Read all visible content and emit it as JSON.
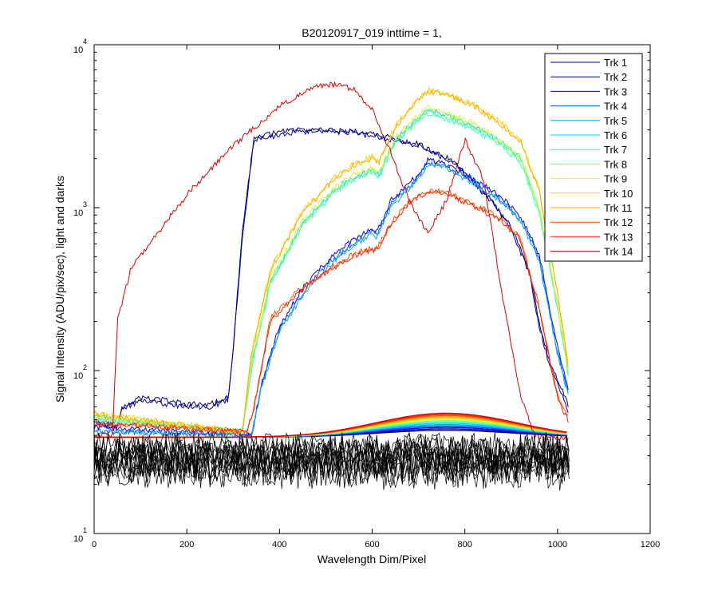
{
  "chart_data": {
    "type": "line",
    "title": "B20120917_019 inttime = 1,",
    "xlabel": "Wavelength Dim/Pixel",
    "ylabel": "Signal Intensity (ADU/pix/sec), light and darks",
    "xlim": [
      0,
      1200
    ],
    "ylim": [
      10,
      10000
    ],
    "yscale": "log",
    "grid": false,
    "legend_position": "top-right",
    "xticks": [
      "0",
      "200",
      "400",
      "600",
      "800",
      "1000",
      "1200"
    ],
    "yticks": [
      {
        "base": "10",
        "exp": "1"
      },
      {
        "base": "10",
        "exp": "2"
      },
      {
        "base": "10",
        "exp": "3"
      },
      {
        "base": "10",
        "exp": "4"
      }
    ],
    "series": [
      {
        "name": "Trk 1",
        "color": "#00007f",
        "x": [
          0,
          48,
          60,
          100,
          150,
          200,
          250,
          290,
          300,
          320,
          345,
          375,
          420,
          480,
          560,
          620,
          700,
          780,
          860,
          900,
          940,
          960,
          980,
          1000,
          1025
        ],
        "y": [
          50,
          45,
          60,
          68,
          66,
          62,
          62,
          69,
          140,
          700,
          2700,
          2800,
          3000,
          3000,
          2950,
          2750,
          2450,
          1900,
          1100,
          760,
          400,
          200,
          120,
          90,
          60
        ]
      },
      {
        "name": "Trk 2",
        "color": "#0000aa",
        "x": [
          0,
          48,
          60,
          100,
          150,
          200,
          250,
          290,
          300,
          320,
          345,
          375,
          420,
          480,
          560,
          620,
          700,
          780,
          860,
          900,
          940,
          960,
          980,
          1000,
          1025
        ],
        "y": [
          48,
          44,
          58,
          65,
          63,
          60,
          60,
          66,
          135,
          680,
          2600,
          2700,
          2900,
          2950,
          2900,
          2700,
          2400,
          1850,
          1080,
          740,
          390,
          190,
          115,
          85,
          55
        ]
      },
      {
        "name": "Trk 3",
        "color": "#0000ff",
        "x": [
          0,
          340,
          360,
          400,
          450,
          500,
          560,
          600,
          610,
          640,
          700,
          720,
          760,
          820,
          880,
          920,
          960,
          1000,
          1025
        ],
        "y": [
          45,
          40,
          80,
          190,
          320,
          460,
          640,
          750,
          700,
          1100,
          1600,
          1950,
          1850,
          1500,
          1150,
          880,
          520,
          140,
          75
        ]
      },
      {
        "name": "Trk 4",
        "color": "#0055ff",
        "x": [
          0,
          340,
          360,
          400,
          450,
          500,
          560,
          600,
          610,
          640,
          700,
          720,
          760,
          820,
          880,
          920,
          960,
          1000,
          1025
        ],
        "y": [
          43,
          40,
          78,
          180,
          300,
          440,
          610,
          720,
          680,
          1050,
          1550,
          1900,
          1800,
          1450,
          1100,
          850,
          500,
          130,
          70
        ]
      },
      {
        "name": "Trk 5",
        "color": "#00aaff",
        "x": [
          0,
          340,
          360,
          400,
          450,
          500,
          560,
          600,
          610,
          640,
          700,
          720,
          760,
          820,
          880,
          920,
          960,
          1000,
          1025
        ],
        "y": [
          42,
          40,
          76,
          175,
          290,
          420,
          590,
          690,
          650,
          1000,
          1500,
          1850,
          1750,
          1400,
          1080,
          830,
          480,
          125,
          68
        ]
      },
      {
        "name": "Trk 6",
        "color": "#00d4ff",
        "x": [
          0,
          320,
          340,
          380,
          450,
          520,
          560,
          600,
          615,
          650,
          700,
          720,
          760,
          820,
          880,
          920,
          960,
          1000,
          1025
        ],
        "y": [
          52,
          42,
          110,
          350,
          800,
          1300,
          1550,
          1700,
          1600,
          2600,
          3600,
          4000,
          3700,
          3200,
          2500,
          2000,
          1000,
          250,
          90
        ]
      },
      {
        "name": "Trk 7",
        "color": "#2cffcf",
        "x": [
          0,
          320,
          340,
          380,
          450,
          520,
          560,
          600,
          615,
          650,
          700,
          720,
          760,
          820,
          880,
          920,
          960,
          1000,
          1025
        ],
        "y": [
          50,
          42,
          105,
          340,
          780,
          1250,
          1500,
          1650,
          1550,
          2500,
          3400,
          3800,
          3500,
          3000,
          2400,
          1900,
          950,
          240,
          88
        ]
      },
      {
        "name": "Trk 8",
        "color": "#7fff7f",
        "x": [
          0,
          320,
          340,
          380,
          450,
          520,
          560,
          600,
          615,
          650,
          700,
          720,
          760,
          820,
          880,
          920,
          960,
          1000,
          1025
        ],
        "y": [
          51,
          42,
          108,
          345,
          790,
          1280,
          1520,
          1680,
          1580,
          2550,
          3500,
          3900,
          3600,
          3100,
          2450,
          1950,
          980,
          245,
          89
        ]
      },
      {
        "name": "Trk 9",
        "color": "#cfff2c",
        "x": [
          0,
          320,
          340,
          380,
          450,
          520,
          560,
          600,
          615,
          650,
          700,
          720,
          760,
          820,
          880,
          920,
          960,
          1000,
          1025
        ],
        "y": [
          53,
          42,
          115,
          370,
          830,
          1350,
          1600,
          1750,
          1650,
          2700,
          3700,
          4100,
          3800,
          3300,
          2550,
          2050,
          1020,
          255,
          92
        ]
      },
      {
        "name": "Trk 10",
        "color": "#ffd400",
        "x": [
          0,
          320,
          340,
          380,
          450,
          520,
          560,
          600,
          615,
          650,
          700,
          720,
          760,
          820,
          880,
          920,
          960,
          1000,
          1025
        ],
        "y": [
          55,
          42,
          130,
          420,
          950,
          1550,
          1850,
          2050,
          1950,
          3200,
          4700,
          5300,
          5000,
          4300,
          3300,
          2600,
          1300,
          300,
          100
        ]
      },
      {
        "name": "Trk 11",
        "color": "#ffaa00",
        "x": [
          0,
          320,
          340,
          380,
          450,
          520,
          560,
          600,
          615,
          650,
          700,
          720,
          760,
          820,
          880,
          920,
          960,
          1000,
          1025
        ],
        "y": [
          54,
          42,
          128,
          410,
          930,
          1520,
          1820,
          2000,
          1900,
          3100,
          4600,
          5200,
          4900,
          4200,
          3200,
          2550,
          1280,
          295,
          98
        ]
      },
      {
        "name": "Trk 12",
        "color": "#ff5500",
        "x": [
          0,
          330,
          345,
          380,
          440,
          500,
          560,
          600,
          610,
          640,
          680,
          720,
          760,
          820,
          880,
          920,
          960,
          1000,
          1025
        ],
        "y": [
          48,
          42,
          60,
          210,
          310,
          410,
          520,
          570,
          560,
          800,
          1100,
          1280,
          1250,
          1050,
          850,
          650,
          250,
          70,
          50
        ]
      },
      {
        "name": "Trk 13",
        "color": "#ff2200",
        "x": [
          0,
          330,
          345,
          380,
          440,
          500,
          560,
          600,
          610,
          640,
          680,
          720,
          760,
          820,
          880,
          920,
          960,
          1000,
          1025
        ],
        "y": [
          47,
          42,
          58,
          200,
          300,
          400,
          505,
          555,
          545,
          780,
          1080,
          1250,
          1220,
          1020,
          830,
          630,
          240,
          68,
          48
        ]
      },
      {
        "name": "Trk 14",
        "color": "#dd0000",
        "x": [
          0,
          40,
          50,
          80,
          120,
          200,
          300,
          400,
          480,
          520,
          560,
          600,
          640,
          680,
          720,
          760,
          800,
          840,
          880,
          920,
          950,
          980,
          1025
        ],
        "y": [
          40,
          40,
          200,
          430,
          600,
          1200,
          2400,
          4200,
          5600,
          5700,
          5300,
          4000,
          2200,
          1100,
          700,
          1100,
          2600,
          1500,
          300,
          70,
          40,
          39,
          38
        ]
      }
    ]
  }
}
